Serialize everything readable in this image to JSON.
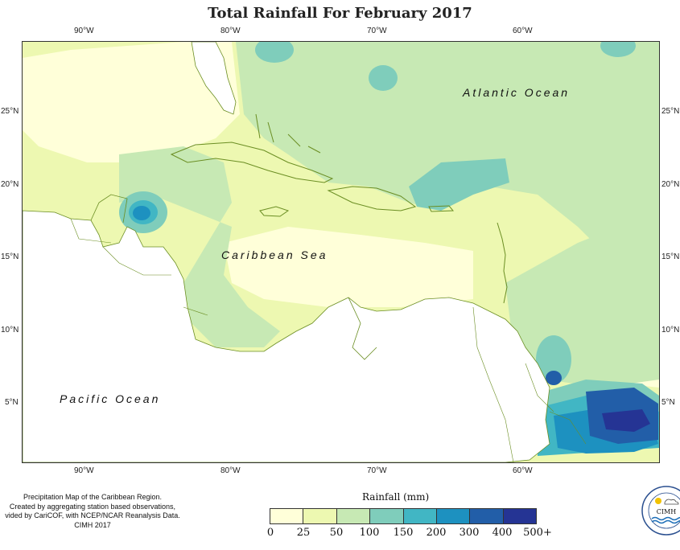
{
  "title": "Total Rainfall For February 2017",
  "axes": {
    "top_ticks": [
      "90°W",
      "80°W",
      "70°W",
      "60°W"
    ],
    "bottom_ticks": [
      "90°W",
      "80°W",
      "70°W",
      "60°W"
    ],
    "left_ticks": [
      "25°N",
      "20°N",
      "15°N",
      "10°N",
      "5°N"
    ],
    "right_ticks": [
      "25°N",
      "20°N",
      "15°N",
      "10°N",
      "5°N"
    ]
  },
  "labels": {
    "atlantic": "Atlantic Ocean",
    "caribbean": "Caribbean Sea",
    "pacific": "Pacific Ocean"
  },
  "credits": [
    "Precipitation Map of the Caribbean Region.",
    "Created by aggregating station based observations,",
    "vided by CariCOF, with NCEP/NCAR Reanalysis Data.",
    "CIMH 2017"
  ],
  "legend": {
    "title": "Rainfall (mm)",
    "colors": [
      "#ffffd9",
      "#edf8b1",
      "#c7e9b4",
      "#7fcdbb",
      "#41b6c4",
      "#1d91c0",
      "#225ea8",
      "#253494",
      "#081d58"
    ],
    "labels": [
      "0",
      "25",
      "50",
      "100",
      "150",
      "200",
      "300",
      "400",
      "500+"
    ]
  },
  "logo": {
    "text": "CIMH",
    "ring_text": "Caribbean Institute for Meteorology and Hydrology"
  }
}
